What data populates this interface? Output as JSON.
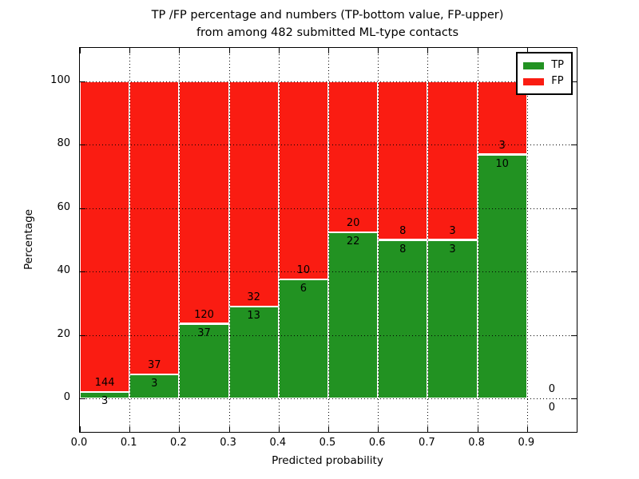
{
  "figure": {
    "title_line1": "TP /FP percentage and numbers (TP-bottom value, FP-upper)",
    "title_line2": "from among 482 submitted ML-type contacts",
    "xlabel": "Predicted probability",
    "ylabel": "Percentage"
  },
  "chart_data": {
    "type": "bar",
    "stacked": true,
    "normalized_to_percent": 100,
    "title": "TP /FP percentage and numbers (TP-bottom value, FP-upper)\nfrom among 482 submitted ML-type contacts",
    "xlabel": "Predicted probability",
    "ylabel": "Percentage",
    "xlim": [
      0.0,
      1.0
    ],
    "ylim": [
      -10.5,
      110.5
    ],
    "x_ticks": [
      "0.0",
      "0.1",
      "0.2",
      "0.3",
      "0.4",
      "0.5",
      "0.6",
      "0.7",
      "0.8",
      "0.9"
    ],
    "y_ticks": [
      0,
      20,
      40,
      60,
      80,
      100
    ],
    "grid": true,
    "grid_style": "dotted",
    "legend_position": "upper right",
    "total_contacts": 482,
    "series": [
      {
        "name": "TP",
        "color": "#229222",
        "position": "bottom"
      },
      {
        "name": "FP",
        "color": "#fa1c12",
        "position": "top"
      }
    ],
    "bins": [
      {
        "range": [
          0.0,
          0.1
        ],
        "tp": 3,
        "fp": 144,
        "tp_pct": 2.0
      },
      {
        "range": [
          0.1,
          0.2
        ],
        "tp": 3,
        "fp": 37,
        "tp_pct": 7.5
      },
      {
        "range": [
          0.2,
          0.3
        ],
        "tp": 37,
        "fp": 120,
        "tp_pct": 23.6
      },
      {
        "range": [
          0.3,
          0.4
        ],
        "tp": 13,
        "fp": 32,
        "tp_pct": 28.9
      },
      {
        "range": [
          0.4,
          0.5
        ],
        "tp": 6,
        "fp": 10,
        "tp_pct": 37.5
      },
      {
        "range": [
          0.5,
          0.6
        ],
        "tp": 22,
        "fp": 20,
        "tp_pct": 52.4
      },
      {
        "range": [
          0.6,
          0.7
        ],
        "tp": 8,
        "fp": 8,
        "tp_pct": 50.0
      },
      {
        "range": [
          0.7,
          0.8
        ],
        "tp": 3,
        "fp": 3,
        "tp_pct": 50.0
      },
      {
        "range": [
          0.8,
          0.9
        ],
        "tp": 10,
        "fp": 3,
        "tp_pct": 76.9
      },
      {
        "range": [
          0.9,
          1.0
        ],
        "tp": 0,
        "fp": 0,
        "tp_pct": null
      }
    ]
  }
}
